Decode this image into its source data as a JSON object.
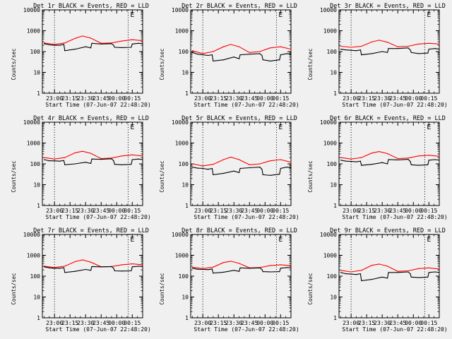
{
  "figure": {
    "start_time_label": "Start Time (07-Jun-07 22:48:20)",
    "ylabel": "Counts/sec",
    "colors": {
      "events": "#000000",
      "lld": "#ff0000",
      "background": "#f0f0f0"
    }
  },
  "chart_data": [
    {
      "type": "line",
      "title": "Det 1r BLACK = Events, RED = LLD",
      "xlabel": "Start Time (07-Jun-07 22:48:20)",
      "ylabel": "Counts/sec",
      "yscale": "log",
      "ylim": [
        1,
        10000
      ],
      "xlim": [
        "22:48:20",
        "00:25:00"
      ],
      "x_ticks": [
        "23:00",
        "23:15",
        "23:30",
        "23:45",
        "00:00",
        "00:15"
      ],
      "y_ticks": [
        "1",
        "10",
        "100",
        "1000",
        "10000"
      ],
      "marker": "E",
      "vlines": [
        "23:00",
        "00:11"
      ],
      "grid": false,
      "series": [
        {
          "name": "LLD",
          "color": "#ff0000",
          "x": [
            "22:50",
            "23:00",
            "23:10",
            "23:20",
            "23:27",
            "23:35",
            "23:45",
            "23:55",
            "00:05",
            "00:15",
            "00:25"
          ],
          "y": [
            260,
            220,
            260,
            430,
            560,
            440,
            250,
            260,
            320,
            370,
            330
          ]
        },
        {
          "name": "Events",
          "color": "#000000",
          "x": [
            "22:50",
            "22:55",
            "23:00",
            "23:05",
            "23:09",
            "23:10",
            "23:20",
            "23:30",
            "23:35",
            "23:36",
            "23:45",
            "23:55",
            "23:57",
            "23:58",
            "00:05",
            "00:14",
            "00:15",
            "00:21",
            "00:25"
          ],
          "y": [
            240,
            210,
            200,
            200,
            220,
            110,
            130,
            170,
            150,
            250,
            230,
            240,
            200,
            160,
            155,
            160,
            230,
            250,
            240
          ]
        }
      ]
    },
    {
      "type": "line",
      "title": "Det 2r BLACK = Events, RED = LLD",
      "xlabel": "Start Time (07-Jun-07 22:48:20)",
      "ylabel": "Counts/sec",
      "yscale": "log",
      "ylim": [
        1,
        10000
      ],
      "xlim": [
        "22:48:20",
        "00:25:00"
      ],
      "x_ticks": [
        "23:00",
        "23:15",
        "23:30",
        "23:45",
        "00:00",
        "00:15"
      ],
      "y_ticks": [
        "1",
        "10",
        "100",
        "1000",
        "10000"
      ],
      "marker": "E",
      "vlines": [
        "23:00",
        "00:11"
      ],
      "grid": false,
      "series": [
        {
          "name": "LLD",
          "color": "#ff0000",
          "x": [
            "22:50",
            "23:00",
            "23:10",
            "23:20",
            "23:27",
            "23:35",
            "23:45",
            "23:55",
            "00:05",
            "00:15",
            "00:25"
          ],
          "y": [
            110,
            80,
            100,
            170,
            220,
            170,
            90,
            100,
            150,
            170,
            130
          ]
        },
        {
          "name": "Events",
          "color": "#000000",
          "x": [
            "22:50",
            "22:55",
            "23:00",
            "23:05",
            "23:09",
            "23:10",
            "23:20",
            "23:30",
            "23:35",
            "23:36",
            "23:45",
            "23:55",
            "23:57",
            "23:58",
            "00:05",
            "00:14",
            "00:15",
            "00:21",
            "00:25"
          ],
          "y": [
            90,
            75,
            70,
            65,
            70,
            35,
            40,
            55,
            45,
            70,
            75,
            80,
            65,
            40,
            35,
            40,
            70,
            80,
            75
          ]
        }
      ]
    },
    {
      "type": "line",
      "title": "Det 3r BLACK = Events, RED = LLD",
      "xlabel": "Start Time (07-Jun-07 22:48:20)",
      "ylabel": "Counts/sec",
      "yscale": "log",
      "ylim": [
        1,
        10000
      ],
      "xlim": [
        "22:48:20",
        "00:25:00"
      ],
      "x_ticks": [
        "23:00",
        "23:15",
        "23:30",
        "23:45",
        "00:00",
        "00:15"
      ],
      "y_ticks": [
        "1",
        "10",
        "100",
        "1000",
        "10000"
      ],
      "marker": "E",
      "vlines": [
        "23:00",
        "00:11"
      ],
      "grid": false,
      "series": [
        {
          "name": "LLD",
          "color": "#ff0000",
          "x": [
            "22:50",
            "23:00",
            "23:10",
            "23:20",
            "23:27",
            "23:35",
            "23:45",
            "23:55",
            "00:05",
            "00:15",
            "00:25"
          ],
          "y": [
            180,
            160,
            180,
            290,
            350,
            280,
            170,
            180,
            230,
            250,
            230
          ]
        },
        {
          "name": "Events",
          "color": "#000000",
          "x": [
            "22:50",
            "22:55",
            "23:00",
            "23:05",
            "23:09",
            "23:10",
            "23:20",
            "23:30",
            "23:35",
            "23:36",
            "23:45",
            "23:55",
            "23:57",
            "23:58",
            "00:05",
            "00:14",
            "00:15",
            "00:21",
            "00:25"
          ],
          "y": [
            130,
            120,
            115,
            110,
            120,
            70,
            80,
            100,
            90,
            140,
            140,
            150,
            120,
            90,
            80,
            85,
            130,
            140,
            130
          ]
        }
      ]
    },
    {
      "type": "line",
      "title": "Det 4r BLACK = Events, RED = LLD",
      "xlabel": "Start Time (07-Jun-07 22:48:20)",
      "ylabel": "Counts/sec",
      "yscale": "log",
      "ylim": [
        1,
        10000
      ],
      "xlim": [
        "22:48:20",
        "00:25:00"
      ],
      "x_ticks": [
        "23:00",
        "23:15",
        "23:30",
        "23:45",
        "00:00",
        "00:15"
      ],
      "y_ticks": [
        "1",
        "10",
        "100",
        "1000",
        "10000"
      ],
      "marker": "E",
      "vlines": [
        "23:00",
        "00:11"
      ],
      "grid": false,
      "series": [
        {
          "name": "LLD",
          "color": "#ff0000",
          "x": [
            "22:50",
            "23:00",
            "23:10",
            "23:20",
            "23:27",
            "23:35",
            "23:45",
            "23:55",
            "00:05",
            "00:15",
            "00:25"
          ],
          "y": [
            200,
            170,
            200,
            340,
            400,
            320,
            180,
            190,
            240,
            270,
            240
          ]
        },
        {
          "name": "Events",
          "color": "#000000",
          "x": [
            "22:50",
            "22:55",
            "23:00",
            "23:05",
            "23:09",
            "23:10",
            "23:20",
            "23:30",
            "23:35",
            "23:36",
            "23:45",
            "23:55",
            "23:57",
            "23:58",
            "00:05",
            "00:14",
            "00:15",
            "00:21",
            "00:25"
          ],
          "y": [
            160,
            140,
            140,
            135,
            145,
            90,
            100,
            120,
            105,
            170,
            165,
            175,
            140,
            95,
            90,
            95,
            160,
            170,
            160
          ]
        }
      ]
    },
    {
      "type": "line",
      "title": "Det 5r BLACK = Events, RED = LLD",
      "xlabel": "Start Time (07-Jun-07 22:48:20)",
      "ylabel": "Counts/sec",
      "yscale": "log",
      "ylim": [
        1,
        10000
      ],
      "xlim": [
        "22:48:20",
        "00:25:00"
      ],
      "x_ticks": [
        "23:00",
        "23:15",
        "23:30",
        "23:45",
        "00:00",
        "00:15"
      ],
      "y_ticks": [
        "1",
        "10",
        "100",
        "1000",
        "10000"
      ],
      "marker": "E",
      "vlines": [
        "23:00",
        "00:11"
      ],
      "grid": false,
      "series": [
        {
          "name": "LLD",
          "color": "#ff0000",
          "x": [
            "22:50",
            "23:00",
            "23:10",
            "23:20",
            "23:27",
            "23:35",
            "23:45",
            "23:55",
            "00:05",
            "00:15",
            "00:25"
          ],
          "y": [
            100,
            80,
            95,
            160,
            210,
            160,
            90,
            100,
            140,
            160,
            120
          ]
        },
        {
          "name": "Events",
          "color": "#000000",
          "x": [
            "22:50",
            "22:55",
            "23:00",
            "23:05",
            "23:09",
            "23:10",
            "23:20",
            "23:30",
            "23:35",
            "23:36",
            "23:45",
            "23:55",
            "23:57",
            "23:58",
            "00:05",
            "00:14",
            "00:15",
            "00:21",
            "00:25"
          ],
          "y": [
            70,
            62,
            60,
            55,
            60,
            30,
            35,
            45,
            38,
            60,
            65,
            70,
            55,
            30,
            28,
            32,
            60,
            70,
            65
          ]
        }
      ]
    },
    {
      "type": "line",
      "title": "Det 6r BLACK = Events, RED = LLD",
      "xlabel": "Start Time (07-Jun-07 22:48:20)",
      "ylabel": "Counts/sec",
      "yscale": "log",
      "ylim": [
        1,
        10000
      ],
      "xlim": [
        "22:48:20",
        "00:25:00"
      ],
      "x_ticks": [
        "23:00",
        "23:15",
        "23:30",
        "23:45",
        "00:00",
        "00:15"
      ],
      "y_ticks": [
        "1",
        "10",
        "100",
        "1000",
        "10000"
      ],
      "marker": "E",
      "vlines": [
        "23:00",
        "00:11"
      ],
      "grid": false,
      "series": [
        {
          "name": "LLD",
          "color": "#ff0000",
          "x": [
            "22:50",
            "23:00",
            "23:10",
            "23:20",
            "23:27",
            "23:35",
            "23:45",
            "23:55",
            "00:05",
            "00:15",
            "00:25"
          ],
          "y": [
            200,
            170,
            200,
            330,
            390,
            310,
            180,
            190,
            240,
            260,
            230
          ]
        },
        {
          "name": "Events",
          "color": "#000000",
          "x": [
            "22:50",
            "22:55",
            "23:00",
            "23:05",
            "23:09",
            "23:10",
            "23:20",
            "23:30",
            "23:35",
            "23:36",
            "23:45",
            "23:55",
            "23:57",
            "23:58",
            "00:05",
            "00:14",
            "00:15",
            "00:21",
            "00:25"
          ],
          "y": [
            150,
            135,
            130,
            125,
            135,
            85,
            95,
            115,
            100,
            160,
            155,
            165,
            130,
            90,
            85,
            90,
            150,
            160,
            150
          ]
        }
      ]
    },
    {
      "type": "line",
      "title": "Det 7r BLACK = Events, RED = LLD",
      "xlabel": "Start Time (07-Jun-07 22:48:20)",
      "ylabel": "Counts/sec",
      "yscale": "log",
      "ylim": [
        1,
        10000
      ],
      "xlim": [
        "22:48:20",
        "00:25:00"
      ],
      "x_ticks": [
        "23:00",
        "23:15",
        "23:30",
        "23:45",
        "00:00",
        "00:15"
      ],
      "y_ticks": [
        "1",
        "10",
        "100",
        "1000",
        "10000"
      ],
      "marker": "E",
      "vlines": [
        "23:00",
        "00:11"
      ],
      "grid": false,
      "series": [
        {
          "name": "LLD",
          "color": "#ff0000",
          "x": [
            "22:50",
            "23:00",
            "23:10",
            "23:20",
            "23:27",
            "23:35",
            "23:45",
            "23:55",
            "00:05",
            "00:15",
            "00:25"
          ],
          "y": [
            300,
            260,
            300,
            500,
            600,
            470,
            280,
            290,
            350,
            390,
            350
          ]
        },
        {
          "name": "Events",
          "color": "#000000",
          "x": [
            "22:50",
            "22:55",
            "23:00",
            "23:05",
            "23:09",
            "23:10",
            "23:20",
            "23:30",
            "23:35",
            "23:36",
            "23:45",
            "23:55",
            "23:57",
            "23:58",
            "00:05",
            "00:14",
            "00:15",
            "00:21",
            "00:25"
          ],
          "y": [
            280,
            250,
            240,
            240,
            255,
            150,
            170,
            210,
            190,
            290,
            280,
            290,
            240,
            180,
            175,
            180,
            280,
            300,
            290
          ]
        }
      ]
    },
    {
      "type": "line",
      "title": "Det 8r BLACK = Events, RED = LLD",
      "xlabel": "Start Time (07-Jun-07 22:48:20)",
      "ylabel": "Counts/sec",
      "yscale": "log",
      "ylim": [
        1,
        10000
      ],
      "xlim": [
        "22:48:20",
        "00:25:00"
      ],
      "x_ticks": [
        "23:00",
        "23:15",
        "23:30",
        "23:45",
        "00:00",
        "00:15"
      ],
      "y_ticks": [
        "1",
        "10",
        "100",
        "1000",
        "10000"
      ],
      "marker": "E",
      "vlines": [
        "23:00",
        "00:11"
      ],
      "grid": false,
      "series": [
        {
          "name": "LLD",
          "color": "#ff0000",
          "x": [
            "22:50",
            "23:00",
            "23:10",
            "23:20",
            "23:27",
            "23:35",
            "23:45",
            "23:55",
            "00:05",
            "00:15",
            "00:25"
          ],
          "y": [
            270,
            230,
            270,
            450,
            520,
            410,
            250,
            260,
            320,
            350,
            320
          ]
        },
        {
          "name": "Events",
          "color": "#000000",
          "x": [
            "22:50",
            "22:55",
            "23:00",
            "23:05",
            "23:09",
            "23:10",
            "23:20",
            "23:30",
            "23:35",
            "23:36",
            "23:45",
            "23:55",
            "23:57",
            "23:58",
            "00:05",
            "00:14",
            "00:15",
            "00:21",
            "00:25"
          ],
          "y": [
            240,
            215,
            210,
            205,
            220,
            140,
            155,
            190,
            170,
            250,
            240,
            250,
            210,
            165,
            160,
            165,
            240,
            260,
            250
          ]
        }
      ]
    },
    {
      "type": "line",
      "title": "Det 9r BLACK = Events, RED = LLD",
      "xlabel": "Start Time (07-Jun-07 22:48:20)",
      "ylabel": "Counts/sec",
      "yscale": "log",
      "ylim": [
        1,
        10000
      ],
      "xlim": [
        "22:48:20",
        "00:25:00"
      ],
      "x_ticks": [
        "23:00",
        "23:15",
        "23:30",
        "23:45",
        "00:00",
        "00:15"
      ],
      "y_ticks": [
        "1",
        "10",
        "100",
        "1000",
        "10000"
      ],
      "marker": "E",
      "vlines": [
        "23:00",
        "00:11"
      ],
      "grid": false,
      "series": [
        {
          "name": "LLD",
          "color": "#ff0000",
          "x": [
            "22:50",
            "23:00",
            "23:10",
            "23:20",
            "23:27",
            "23:35",
            "23:45",
            "23:55",
            "00:05",
            "00:15",
            "00:25"
          ],
          "y": [
            190,
            160,
            190,
            330,
            380,
            300,
            170,
            180,
            230,
            250,
            220
          ]
        },
        {
          "name": "Events",
          "color": "#000000",
          "x": [
            "22:50",
            "22:55",
            "23:00",
            "23:05",
            "23:09",
            "23:10",
            "23:20",
            "23:30",
            "23:35",
            "23:36",
            "23:45",
            "23:55",
            "23:57",
            "23:58",
            "00:05",
            "00:14",
            "00:15",
            "00:21",
            "00:25"
          ],
          "y": [
            150,
            130,
            125,
            120,
            130,
            60,
            70,
            90,
            80,
            150,
            150,
            160,
            130,
            90,
            85,
            90,
            150,
            160,
            150
          ]
        }
      ]
    }
  ]
}
